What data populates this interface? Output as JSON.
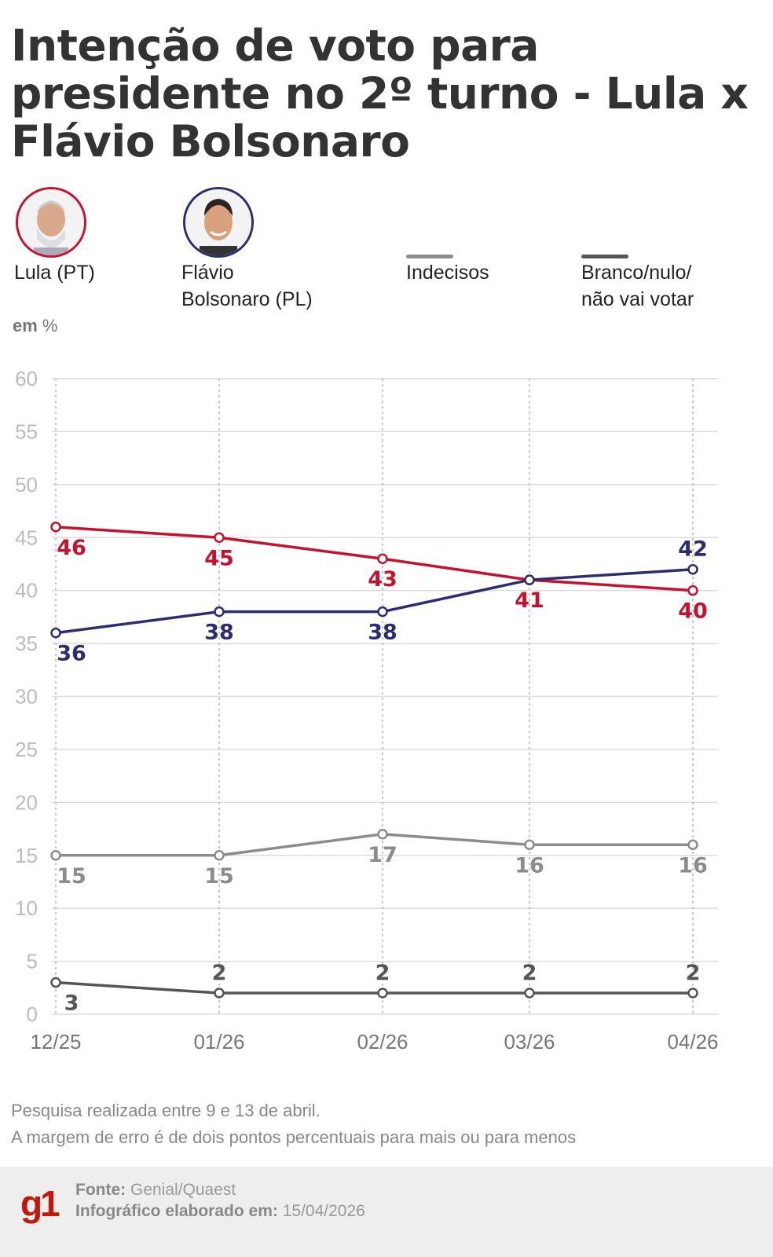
{
  "title": "Intenção de voto para presidente no 2º turno - Lula x Flávio Bolsonaro",
  "legend": [
    {
      "label": "Lula (PT)",
      "color": "#c4122f",
      "icon": "lula-portrait"
    },
    {
      "label_line1": "Flávio",
      "label_line2": "Bolsonaro (PL)",
      "color": "#2c2c6e",
      "icon": "flavio-portrait"
    },
    {
      "label": "Indecisos",
      "color": "#8c8c8c"
    },
    {
      "label_line1": "Branco/nulo/",
      "label_line2": "não vai votar",
      "color": "#555555"
    }
  ],
  "unit_label_bold": "em",
  "unit_label": "%",
  "chart_data": {
    "type": "line",
    "categories": [
      "12/25",
      "01/26",
      "02/26",
      "03/26",
      "04/26"
    ],
    "ylim": [
      0,
      60
    ],
    "yticks": [
      "0",
      "5",
      "10",
      "15",
      "20",
      "25",
      "30",
      "35",
      "40",
      "45",
      "50",
      "55",
      "60"
    ],
    "grid": true,
    "series": [
      {
        "name": "Lula (PT)",
        "color": "#c4122f",
        "values": [
          46,
          45,
          43,
          41,
          40
        ]
      },
      {
        "name": "Flávio Bolsonaro (PL)",
        "color": "#2c2c6e",
        "values": [
          36,
          38,
          38,
          41,
          42
        ]
      },
      {
        "name": "Indecisos",
        "color": "#8c8c8c",
        "values": [
          15,
          15,
          17,
          16,
          16
        ]
      },
      {
        "name": "Branco/nulo/não vai votar",
        "color": "#555555",
        "values": [
          3,
          2,
          2,
          2,
          2
        ]
      }
    ]
  },
  "notes": {
    "line1": "Pesquisa realizada entre  9 e 13 de abril.",
    "line2": "A margem de erro é de dois pontos percentuais para mais ou para menos"
  },
  "footer": {
    "logo": "g1",
    "source_label": "Fonte:",
    "source": "Genial/Quaest",
    "date_label": "Infográfico elaborado em:",
    "date": "15/04/2026"
  }
}
